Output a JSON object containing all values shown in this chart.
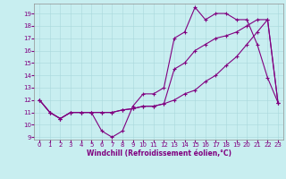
{
  "xlabel": "Windchill (Refroidissement éolien,°C)",
  "bg_color": "#c8eef0",
  "line_color": "#800080",
  "grid_color": "#a8d8dc",
  "xlim": [
    -0.5,
    23.5
  ],
  "ylim": [
    8.8,
    19.8
  ],
  "yticks": [
    9,
    10,
    11,
    12,
    13,
    14,
    15,
    16,
    17,
    18,
    19
  ],
  "xticks": [
    0,
    1,
    2,
    3,
    4,
    5,
    6,
    7,
    8,
    9,
    10,
    11,
    12,
    13,
    14,
    15,
    16,
    17,
    18,
    19,
    20,
    21,
    22,
    23
  ],
  "series1_x": [
    0,
    1,
    2,
    3,
    4,
    5,
    6,
    7,
    8,
    9,
    10,
    11,
    12,
    13,
    14,
    15,
    16,
    17,
    18,
    19,
    20,
    21,
    22,
    23
  ],
  "series1_y": [
    12.0,
    11.0,
    10.5,
    11.0,
    11.0,
    11.0,
    9.5,
    9.0,
    9.5,
    11.5,
    12.5,
    12.5,
    13.0,
    17.0,
    17.5,
    19.5,
    18.5,
    19.0,
    19.0,
    18.5,
    18.5,
    16.5,
    13.8,
    11.8
  ],
  "series2_x": [
    0,
    1,
    2,
    3,
    4,
    5,
    6,
    7,
    8,
    9,
    10,
    11,
    12,
    13,
    14,
    15,
    16,
    17,
    18,
    19,
    20,
    21,
    22,
    23
  ],
  "series2_y": [
    12.0,
    11.0,
    10.5,
    11.0,
    11.0,
    11.0,
    11.0,
    11.0,
    11.2,
    11.3,
    11.5,
    11.5,
    11.7,
    12.0,
    12.5,
    12.8,
    13.5,
    14.0,
    14.8,
    15.5,
    16.5,
    17.5,
    18.5,
    11.8
  ],
  "series3_x": [
    0,
    1,
    2,
    3,
    4,
    5,
    6,
    7,
    8,
    9,
    10,
    11,
    12,
    13,
    14,
    15,
    16,
    17,
    18,
    19,
    20,
    21,
    22,
    23
  ],
  "series3_y": [
    12.0,
    11.0,
    10.5,
    11.0,
    11.0,
    11.0,
    11.0,
    11.0,
    11.2,
    11.3,
    11.5,
    11.5,
    11.7,
    14.5,
    15.0,
    16.0,
    16.5,
    17.0,
    17.2,
    17.5,
    18.0,
    18.5,
    18.5,
    11.8
  ],
  "xlabel_fontsize": 5.5,
  "tick_labelsize": 5.0,
  "linewidth": 0.8,
  "markersize": 2.5
}
